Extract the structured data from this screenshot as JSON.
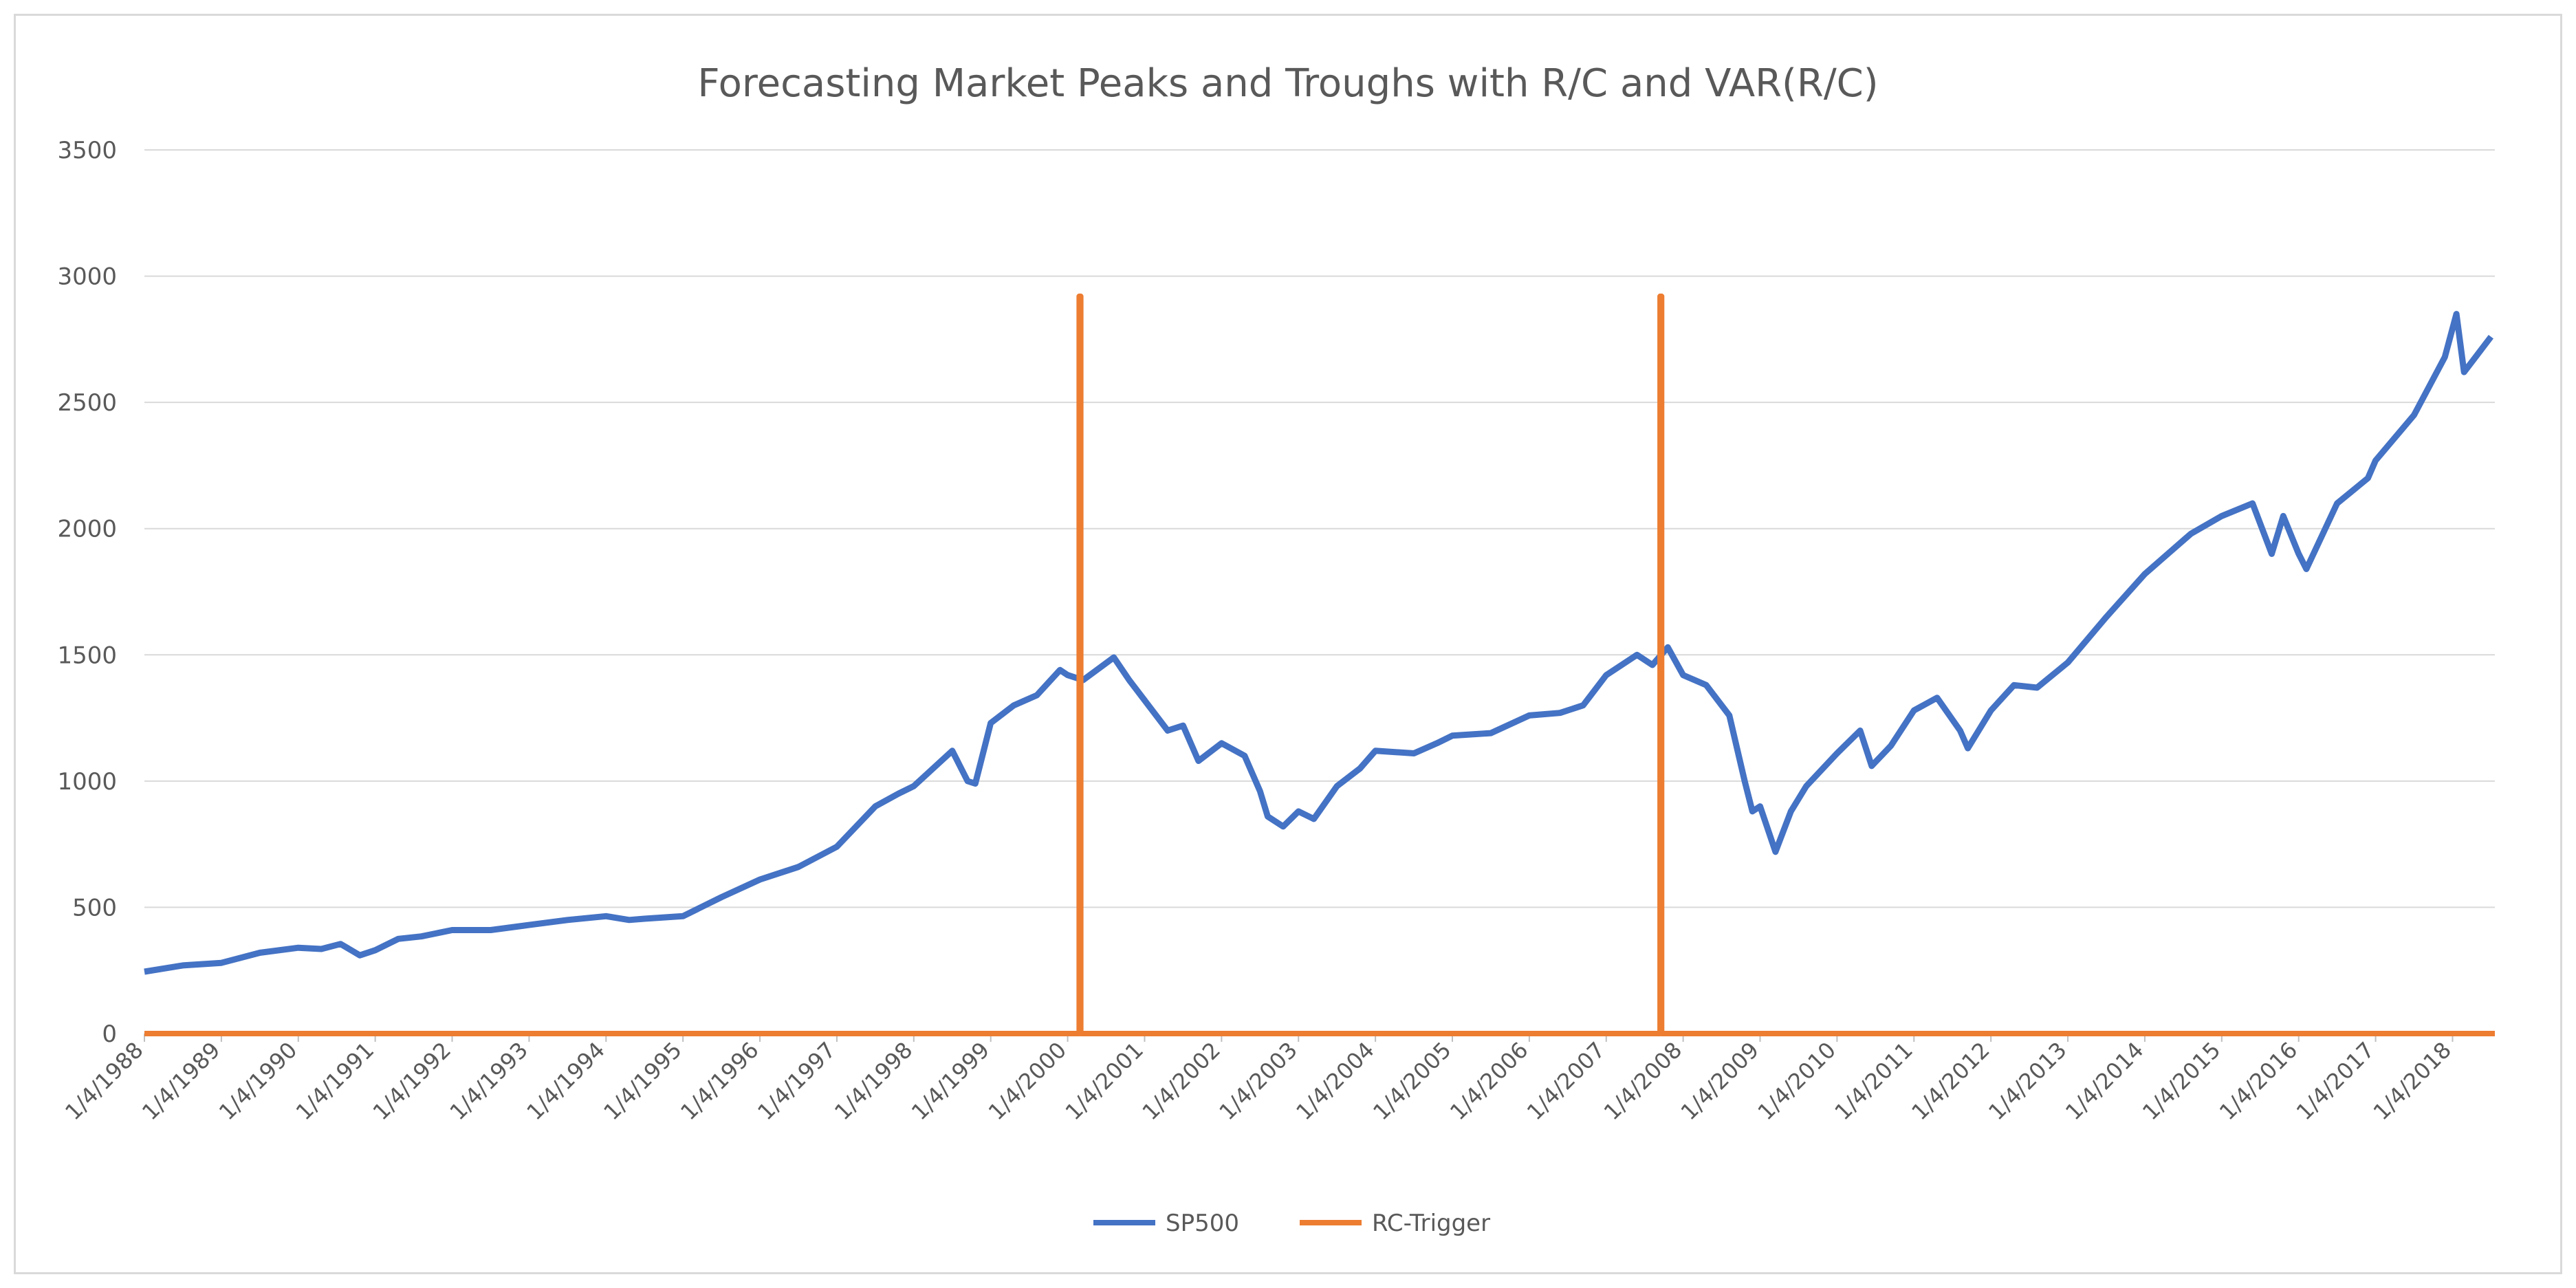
{
  "chart_data": {
    "type": "line",
    "title": "Forecasting Market Peaks and Troughs with R/C and VAR(R/C)",
    "xlabel": "",
    "ylabel": "",
    "ylim": [
      0,
      3500
    ],
    "yticks": [
      0,
      500,
      1000,
      1500,
      2000,
      2500,
      3000,
      3500
    ],
    "xlim": [
      1988.0,
      2018.55
    ],
    "xticks": [
      {
        "label": "1/4/1988",
        "x": 1988
      },
      {
        "label": "1/4/1989",
        "x": 1989
      },
      {
        "label": "1/4/1990",
        "x": 1990
      },
      {
        "label": "1/4/1991",
        "x": 1991
      },
      {
        "label": "1/4/1992",
        "x": 1992
      },
      {
        "label": "1/4/1993",
        "x": 1993
      },
      {
        "label": "1/4/1994",
        "x": 1994
      },
      {
        "label": "1/4/1995",
        "x": 1995
      },
      {
        "label": "1/4/1996",
        "x": 1996
      },
      {
        "label": "1/4/1997",
        "x": 1997
      },
      {
        "label": "1/4/1998",
        "x": 1998
      },
      {
        "label": "1/4/1999",
        "x": 1999
      },
      {
        "label": "1/4/2000",
        "x": 2000
      },
      {
        "label": "1/4/2001",
        "x": 2001
      },
      {
        "label": "1/4/2002",
        "x": 2002
      },
      {
        "label": "1/4/2003",
        "x": 2003
      },
      {
        "label": "1/4/2004",
        "x": 2004
      },
      {
        "label": "1/4/2005",
        "x": 2005
      },
      {
        "label": "1/4/2006",
        "x": 2006
      },
      {
        "label": "1/4/2007",
        "x": 2007
      },
      {
        "label": "1/4/2008",
        "x": 2008
      },
      {
        "label": "1/4/2009",
        "x": 2009
      },
      {
        "label": "1/4/2010",
        "x": 2010
      },
      {
        "label": "1/4/2011",
        "x": 2011
      },
      {
        "label": "1/4/2012",
        "x": 2012
      },
      {
        "label": "1/4/2013",
        "x": 2013
      },
      {
        "label": "1/4/2014",
        "x": 2014
      },
      {
        "label": "1/4/2015",
        "x": 2015
      },
      {
        "label": "1/4/2016",
        "x": 2016
      },
      {
        "label": "1/4/2017",
        "x": 2017
      },
      {
        "label": "1/4/2018",
        "x": 2018
      }
    ],
    "grid": true,
    "legend_position": "bottom",
    "series": [
      {
        "name": "SP500",
        "color": "#4472c4",
        "points": [
          [
            1988.0,
            245
          ],
          [
            1988.5,
            270
          ],
          [
            1989.0,
            280
          ],
          [
            1989.5,
            320
          ],
          [
            1990.0,
            340
          ],
          [
            1990.3,
            335
          ],
          [
            1990.55,
            355
          ],
          [
            1990.8,
            310
          ],
          [
            1991.0,
            330
          ],
          [
            1991.3,
            375
          ],
          [
            1991.6,
            385
          ],
          [
            1992.0,
            410
          ],
          [
            1992.5,
            410
          ],
          [
            1993.0,
            430
          ],
          [
            1993.5,
            450
          ],
          [
            1994.0,
            465
          ],
          [
            1994.3,
            450
          ],
          [
            1994.5,
            455
          ],
          [
            1995.0,
            465
          ],
          [
            1995.5,
            540
          ],
          [
            1996.0,
            610
          ],
          [
            1996.5,
            660
          ],
          [
            1997.0,
            740
          ],
          [
            1997.5,
            900
          ],
          [
            1997.8,
            950
          ],
          [
            1998.0,
            980
          ],
          [
            1998.5,
            1120
          ],
          [
            1998.7,
            1000
          ],
          [
            1998.8,
            990
          ],
          [
            1999.0,
            1230
          ],
          [
            1999.3,
            1300
          ],
          [
            1999.6,
            1340
          ],
          [
            1999.9,
            1440
          ],
          [
            2000.0,
            1420
          ],
          [
            2000.2,
            1400
          ],
          [
            2000.6,
            1490
          ],
          [
            2000.8,
            1400
          ],
          [
            2001.0,
            1320
          ],
          [
            2001.3,
            1200
          ],
          [
            2001.5,
            1220
          ],
          [
            2001.7,
            1080
          ],
          [
            2002.0,
            1150
          ],
          [
            2002.3,
            1100
          ],
          [
            2002.5,
            960
          ],
          [
            2002.6,
            860
          ],
          [
            2002.8,
            820
          ],
          [
            2003.0,
            880
          ],
          [
            2003.2,
            850
          ],
          [
            2003.5,
            980
          ],
          [
            2003.8,
            1050
          ],
          [
            2004.0,
            1120
          ],
          [
            2004.5,
            1110
          ],
          [
            2004.8,
            1150
          ],
          [
            2005.0,
            1180
          ],
          [
            2005.5,
            1190
          ],
          [
            2006.0,
            1260
          ],
          [
            2006.4,
            1270
          ],
          [
            2006.7,
            1300
          ],
          [
            2007.0,
            1420
          ],
          [
            2007.4,
            1500
          ],
          [
            2007.6,
            1460
          ],
          [
            2007.8,
            1530
          ],
          [
            2008.0,
            1420
          ],
          [
            2008.3,
            1380
          ],
          [
            2008.6,
            1260
          ],
          [
            2008.8,
            1000
          ],
          [
            2008.9,
            880
          ],
          [
            2009.0,
            900
          ],
          [
            2009.2,
            720
          ],
          [
            2009.4,
            880
          ],
          [
            2009.6,
            980
          ],
          [
            2010.0,
            1110
          ],
          [
            2010.3,
            1200
          ],
          [
            2010.45,
            1060
          ],
          [
            2010.7,
            1140
          ],
          [
            2011.0,
            1280
          ],
          [
            2011.3,
            1330
          ],
          [
            2011.6,
            1200
          ],
          [
            2011.7,
            1130
          ],
          [
            2012.0,
            1280
          ],
          [
            2012.3,
            1380
          ],
          [
            2012.6,
            1370
          ],
          [
            2013.0,
            1470
          ],
          [
            2013.5,
            1650
          ],
          [
            2014.0,
            1820
          ],
          [
            2014.3,
            1900
          ],
          [
            2014.6,
            1980
          ],
          [
            2015.0,
            2050
          ],
          [
            2015.4,
            2100
          ],
          [
            2015.65,
            1900
          ],
          [
            2015.8,
            2050
          ],
          [
            2016.0,
            1900
          ],
          [
            2016.1,
            1840
          ],
          [
            2016.5,
            2100
          ],
          [
            2016.9,
            2200
          ],
          [
            2017.0,
            2270
          ],
          [
            2017.5,
            2450
          ],
          [
            2017.9,
            2680
          ],
          [
            2018.05,
            2850
          ],
          [
            2018.15,
            2620
          ],
          [
            2018.3,
            2680
          ],
          [
            2018.5,
            2760
          ]
        ]
      },
      {
        "name": "RC-Trigger",
        "color": "#ed7d31",
        "points": [
          [
            1988.0,
            0
          ],
          [
            2000.15,
            0
          ],
          [
            2000.15,
            2920
          ],
          [
            2000.17,
            2920
          ],
          [
            2000.17,
            0
          ],
          [
            2007.7,
            0
          ],
          [
            2007.7,
            2920
          ],
          [
            2007.72,
            2920
          ],
          [
            2007.72,
            0
          ],
          [
            2018.55,
            0
          ]
        ]
      }
    ]
  }
}
